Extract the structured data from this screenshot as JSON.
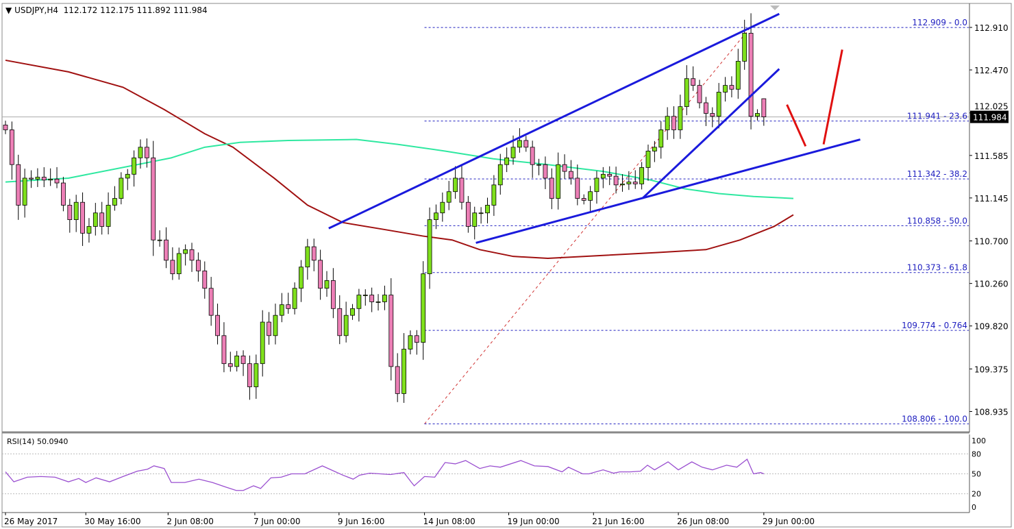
{
  "header": {
    "symbol": "USDJPY,H4",
    "open": "112.172",
    "high": "112.175",
    "low": "111.892",
    "close": "111.984",
    "arrow_icon": "triangle-down"
  },
  "rsi_label": "RSI(14) 50.0940",
  "colors": {
    "bull": "#7fe01c",
    "bear": "#ec7fb6",
    "ma_slow": "#a01010",
    "ma_fast": "#2ee8a0",
    "trendline": "#1a1adc",
    "fib": "#2020c0",
    "arrow": "#e01010",
    "rsi": "#9a4fd0"
  },
  "chart_data": {
    "type": "candlestick",
    "symbol": "USDJPY",
    "timeframe": "H4",
    "ylim": [
      108.85,
      113.05
    ],
    "y_ticks": [
      "112.910",
      "112.470",
      "112.025",
      "111.585",
      "111.145",
      "110.700",
      "110.260",
      "109.820",
      "109.375",
      "108.935"
    ],
    "y_tick_values": [
      112.91,
      112.47,
      112.025,
      111.585,
      111.145,
      110.7,
      110.26,
      109.82,
      109.375,
      108.935
    ],
    "current_price": "111.984",
    "first_open": 111.9,
    "last_bar": {
      "open": 112.172,
      "high": 112.175,
      "low": 111.892,
      "close": 111.984
    },
    "closes": [
      111.85,
      111.49,
      111.07,
      111.35,
      111.34,
      111.36,
      111.33,
      111.34,
      111.3,
      111.07,
      110.92,
      111.1,
      110.78,
      110.85,
      110.99,
      110.85,
      111.07,
      111.14,
      111.35,
      111.39,
      111.56,
      111.67,
      111.56,
      110.71,
      110.71,
      110.5,
      110.36,
      110.57,
      110.61,
      110.5,
      110.39,
      110.21,
      109.93,
      109.72,
      109.43,
      109.4,
      109.51,
      109.43,
      109.19,
      109.43,
      109.86,
      109.72,
      109.93,
      110.04,
      110.0,
      110.21,
      110.43,
      110.64,
      110.5,
      110.21,
      110.29,
      110.0,
      109.72,
      109.93,
      110.0,
      110.14,
      110.14,
      110.07,
      110.07,
      110.14,
      109.4,
      109.12,
      109.58,
      109.72,
      109.65,
      110.36,
      110.92,
      110.99,
      111.1,
      111.21,
      111.35,
      111.1,
      110.85,
      110.99,
      110.99,
      111.07,
      111.28,
      111.49,
      111.56,
      111.67,
      111.74,
      111.67,
      111.49,
      111.49,
      111.35,
      111.14,
      111.49,
      111.42,
      111.35,
      111.14,
      111.12,
      111.21,
      111.35,
      111.39,
      111.37,
      111.28,
      111.29,
      111.31,
      111.29,
      111.46,
      111.63,
      111.67,
      111.85,
      111.99,
      111.85,
      112.09,
      112.38,
      112.31,
      112.13,
      112.02,
      111.99,
      112.24,
      112.31,
      112.27,
      112.56,
      112.85,
      111.99,
      112.02,
      111.984
    ],
    "ma_slow": [
      [
        0,
        112.57
      ],
      [
        9.8,
        112.45
      ],
      [
        18.3,
        112.29
      ],
      [
        24.7,
        112.06
      ],
      [
        31,
        111.81
      ],
      [
        35.4,
        111.67
      ],
      [
        41.8,
        111.35
      ],
      [
        47,
        111.07
      ],
      [
        52.5,
        110.89
      ],
      [
        58.8,
        110.82
      ],
      [
        65,
        110.75
      ],
      [
        69.5,
        110.71
      ],
      [
        73.8,
        110.61
      ],
      [
        79,
        110.54
      ],
      [
        84.4,
        110.52
      ],
      [
        93,
        110.55
      ],
      [
        101.5,
        110.58
      ],
      [
        109,
        110.61
      ],
      [
        114.3,
        110.71
      ],
      [
        119.6,
        110.85
      ],
      [
        122.6,
        110.97
      ]
    ],
    "ma_fast": [
      [
        0,
        111.31
      ],
      [
        9.8,
        111.35
      ],
      [
        20.5,
        111.49
      ],
      [
        25.8,
        111.56
      ],
      [
        31,
        111.67
      ],
      [
        36.5,
        111.72
      ],
      [
        44,
        111.74
      ],
      [
        54.6,
        111.75
      ],
      [
        61,
        111.7
      ],
      [
        68.4,
        111.63
      ],
      [
        75.9,
        111.55
      ],
      [
        84.4,
        111.49
      ],
      [
        93,
        111.42
      ],
      [
        100.4,
        111.33
      ],
      [
        105.7,
        111.24
      ],
      [
        111,
        111.19
      ],
      [
        116.4,
        111.16
      ],
      [
        122.6,
        111.14
      ]
    ],
    "trendlines": [
      {
        "from": [
          50.3,
          110.83
        ],
        "to": [
          120.4,
          113.05
        ]
      },
      {
        "from": [
          73.2,
          110.68
        ],
        "to": [
          133,
          111.75
        ]
      },
      {
        "from": [
          99.1,
          111.14
        ],
        "to": [
          120.4,
          112.48
        ]
      }
    ],
    "fib_retracement": {
      "from": [
        65.2,
        108.806
      ],
      "to": [
        115.9,
        112.909
      ],
      "levels": [
        {
          "price": 112.909,
          "label": "112.909 - 0.0"
        },
        {
          "price": 111.941,
          "label": "111.941 - 23.6"
        },
        {
          "price": 111.342,
          "label": "111.342 - 38.2"
        },
        {
          "price": 110.858,
          "label": "110.858 - 50.0"
        },
        {
          "price": 110.373,
          "label": "110.373 - 61.8"
        },
        {
          "price": 109.774,
          "label": "109.774 - 0.764"
        },
        {
          "price": 108.806,
          "label": "108.806 - 100.0"
        }
      ]
    },
    "arrows": [
      {
        "from": [
          121.6,
          112.11
        ],
        "to": [
          124.5,
          111.68
        ]
      },
      {
        "from": [
          127.3,
          111.7
        ],
        "to": [
          130.2,
          112.68
        ]
      }
    ],
    "x_ticks": [
      {
        "bar": 0,
        "label": "26 May 2017"
      },
      {
        "bar": 12.5,
        "label": "30 May 16:00"
      },
      {
        "bar": 25.3,
        "label": "2 Jun 08:00"
      },
      {
        "bar": 38.8,
        "label": "7 Jun 00:00"
      },
      {
        "bar": 51.9,
        "label": "9 Jun 16:00"
      },
      {
        "bar": 65.2,
        "label": "14 Jun 08:00"
      },
      {
        "bar": 78.3,
        "label": "19 Jun 00:00"
      },
      {
        "bar": 91.5,
        "label": "21 Jun 16:00"
      },
      {
        "bar": 104.7,
        "label": "26 Jun 08:00"
      },
      {
        "bar": 118,
        "label": "29 Jun 00:00"
      }
    ],
    "rsi": {
      "period": 14,
      "value": 50.094,
      "levels": [
        80,
        50,
        20
      ],
      "y_ticks": [
        "100",
        "80",
        "50",
        "20",
        "0"
      ],
      "y_tick_values": [
        100,
        80,
        50,
        20,
        0
      ],
      "points": [
        [
          0,
          53
        ],
        [
          1.3,
          38
        ],
        [
          3.4,
          45
        ],
        [
          5.5,
          46
        ],
        [
          7.7,
          45
        ],
        [
          9.8,
          38
        ],
        [
          11.4,
          43
        ],
        [
          12.5,
          37
        ],
        [
          14.1,
          44
        ],
        [
          16.2,
          38
        ],
        [
          18.3,
          46
        ],
        [
          20.5,
          54
        ],
        [
          22.1,
          57
        ],
        [
          23.1,
          62
        ],
        [
          24.7,
          58
        ],
        [
          25.8,
          37
        ],
        [
          27.9,
          37
        ],
        [
          30.1,
          42
        ],
        [
          32.2,
          37
        ],
        [
          34.3,
          30
        ],
        [
          35.9,
          25
        ],
        [
          37,
          25
        ],
        [
          38.6,
          32
        ],
        [
          39.7,
          28
        ],
        [
          41.3,
          44
        ],
        [
          42.9,
          45
        ],
        [
          44.5,
          50
        ],
        [
          46.6,
          50
        ],
        [
          49.3,
          62
        ],
        [
          50.9,
          55
        ],
        [
          52.5,
          48
        ],
        [
          54.1,
          42
        ],
        [
          55.1,
          48
        ],
        [
          56.7,
          51
        ],
        [
          58.3,
          50
        ],
        [
          59.9,
          49
        ],
        [
          62,
          52
        ],
        [
          63.1,
          38
        ],
        [
          63.6,
          32
        ],
        [
          65.2,
          46
        ],
        [
          66.8,
          45
        ],
        [
          68.4,
          67
        ],
        [
          70,
          65
        ],
        [
          71.6,
          70
        ],
        [
          73.8,
          58
        ],
        [
          75.4,
          62
        ],
        [
          77,
          60
        ],
        [
          80.2,
          70
        ],
        [
          82.3,
          62
        ],
        [
          84.4,
          61
        ],
        [
          86.6,
          53
        ],
        [
          87.6,
          60
        ],
        [
          89.8,
          50
        ],
        [
          90.8,
          50
        ],
        [
          93,
          56
        ],
        [
          94.6,
          51
        ],
        [
          95.6,
          53
        ],
        [
          97.2,
          53
        ],
        [
          98.8,
          54
        ],
        [
          99.9,
          63
        ],
        [
          101,
          56
        ],
        [
          103.1,
          68
        ],
        [
          104.7,
          56
        ],
        [
          106.8,
          68
        ],
        [
          108.4,
          60
        ],
        [
          110,
          56
        ],
        [
          112.2,
          63
        ],
        [
          113.8,
          60
        ],
        [
          115.4,
          72
        ],
        [
          116.4,
          50
        ],
        [
          117.5,
          52
        ],
        [
          118,
          50
        ]
      ]
    }
  }
}
